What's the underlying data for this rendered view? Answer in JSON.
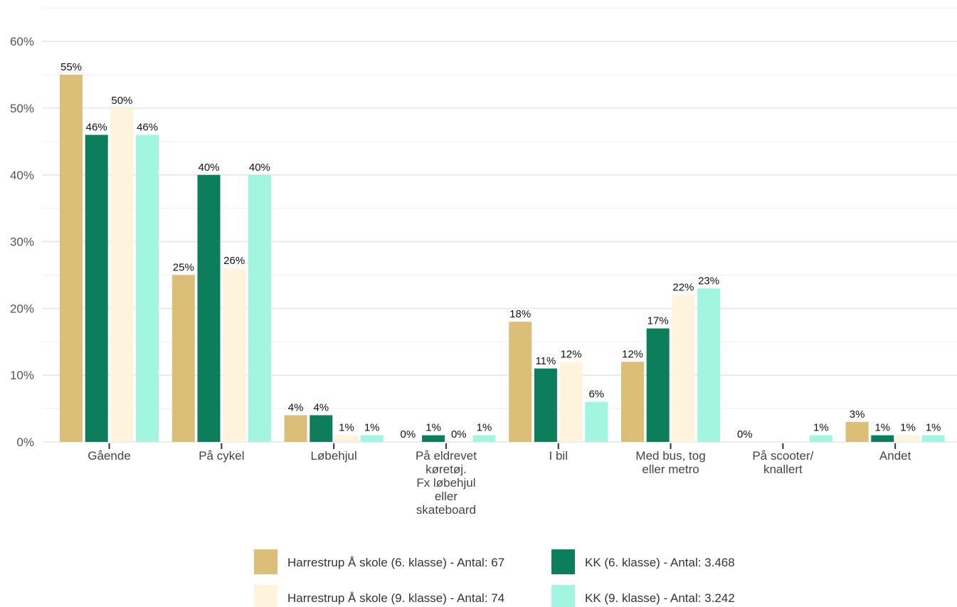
{
  "chart_data": {
    "type": "bar",
    "categories": [
      [
        "Gående"
      ],
      [
        "På cykel"
      ],
      [
        "Løbehjul"
      ],
      [
        "På eldrevet",
        "køretøj.",
        "Fx løbehjul",
        "eller",
        "skateboard"
      ],
      [
        "I bil"
      ],
      [
        "Med bus, tog",
        "eller metro"
      ],
      [
        "På scooter/",
        "knallert"
      ],
      [
        "Andet"
      ]
    ],
    "series": [
      {
        "name": "Harrestrup Å skole (6. klasse) - Antal: 67",
        "color": "#dbbe78",
        "values": [
          55,
          25,
          4,
          0,
          18,
          12,
          0,
          3
        ],
        "labels": [
          "55%",
          "25%",
          "4%",
          "0%",
          "18%",
          "12%",
          "0%",
          "3%"
        ]
      },
      {
        "name": "KK (6. klasse) - Antal: 3.468",
        "color": "#0c7e5c",
        "values": [
          46,
          40,
          4,
          1,
          11,
          17,
          null,
          1
        ],
        "labels": [
          "46%",
          "40%",
          "4%",
          "1%",
          "11%",
          "17%",
          "",
          "1%"
        ]
      },
      {
        "name": "Harrestrup Å skole (9. klasse) - Antal: 74",
        "color": "#fef4dc",
        "values": [
          50,
          26,
          1,
          0,
          12,
          22,
          null,
          1
        ],
        "labels": [
          "50%",
          "26%",
          "1%",
          "0%",
          "12%",
          "22%",
          "",
          "1%"
        ]
      },
      {
        "name": "KK (9. klasse) - Antal: 3.242",
        "color": "#a2f5df",
        "values": [
          46,
          40,
          1,
          1,
          6,
          23,
          1,
          1
        ],
        "labels": [
          "46%",
          "40%",
          "1%",
          "1%",
          "6%",
          "23%",
          "1%",
          "1%"
        ]
      }
    ],
    "y_ticks": [
      0,
      10,
      20,
      30,
      40,
      50,
      60
    ],
    "y_tick_labels": [
      "0%",
      "10%",
      "20%",
      "30%",
      "40%",
      "50%",
      "60%"
    ],
    "ylim": [
      0,
      65
    ],
    "grid": true,
    "legend_position": "bottom"
  }
}
